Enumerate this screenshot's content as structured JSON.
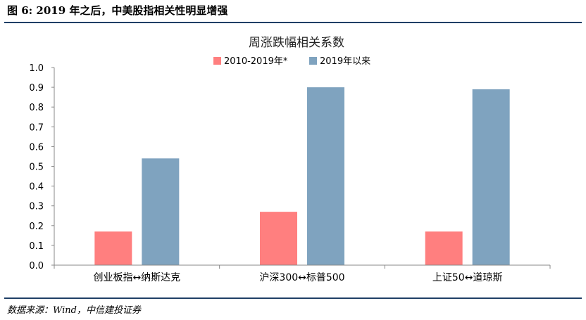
{
  "figure": {
    "title": "图 6: 2019 年之后，中美股指相关性明显增强",
    "source": "数据来源：Wind，中信建投证券"
  },
  "chart_data": {
    "type": "bar",
    "title": "周涨跌幅相关系数",
    "categories": [
      "创业板指↔纳斯达克",
      "沪深300↔标普500",
      "上证50↔道琼斯"
    ],
    "series": [
      {
        "name": "2010-2019年*",
        "values": [
          0.17,
          0.27,
          0.17
        ],
        "color": "#ff7f7f"
      },
      {
        "name": "2019年以来",
        "values": [
          0.54,
          0.9,
          0.89
        ],
        "color": "#7fa3bf"
      }
    ],
    "ylim": [
      0,
      1.0
    ],
    "yticks": [
      "0.0",
      "0.1",
      "0.2",
      "0.3",
      "0.4",
      "0.5",
      "0.6",
      "0.7",
      "0.8",
      "0.9",
      "1.0"
    ],
    "grid": false,
    "legend_position": "top-center"
  }
}
